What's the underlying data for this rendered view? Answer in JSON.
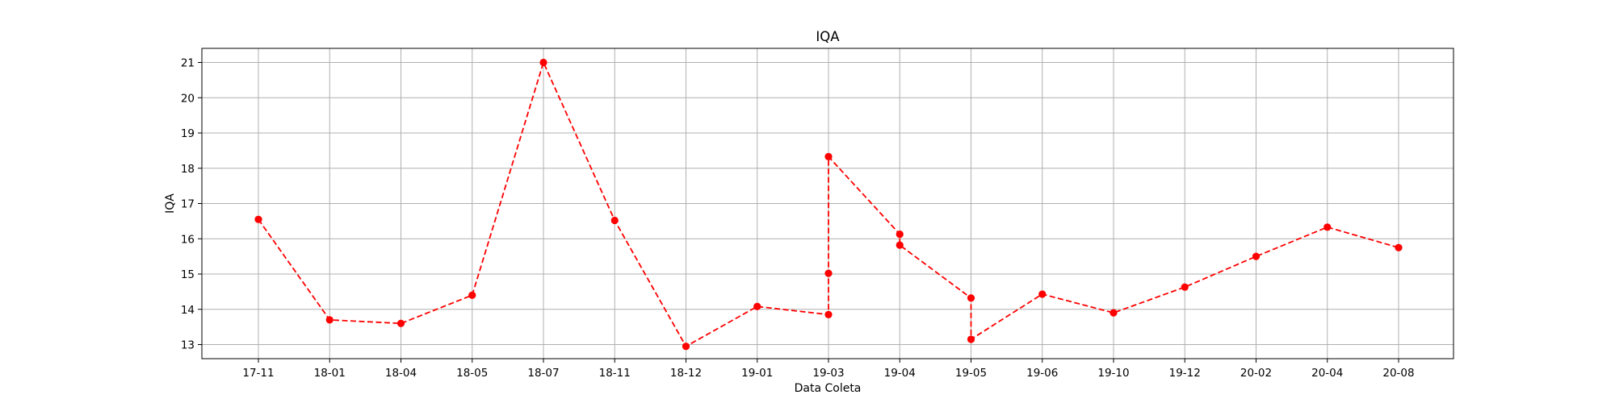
{
  "chart_data": {
    "type": "line",
    "title": "IQA",
    "xlabel": "Data Coleta",
    "ylabel": "IQA",
    "categories": [
      "17-11",
      "18-01",
      "18-04",
      "18-05",
      "18-07",
      "18-11",
      "18-12",
      "19-01",
      "19-03",
      "19-04",
      "19-05",
      "19-06",
      "19-10",
      "19-12",
      "20-02",
      "20-04",
      "20-08"
    ],
    "yticks": [
      13,
      14,
      15,
      16,
      17,
      18,
      19,
      20,
      21
    ],
    "ylim": [
      12.6,
      21.4
    ],
    "grid": true,
    "series": [
      {
        "color": "#ff0000",
        "line_style": "dashed",
        "marker": "circle",
        "points": [
          {
            "x": "17-11",
            "y": 16.55
          },
          {
            "x": "18-01",
            "y": 13.7
          },
          {
            "x": "18-04",
            "y": 13.6
          },
          {
            "x": "18-05",
            "y": 14.4
          },
          {
            "x": "18-07",
            "y": 21.0
          },
          {
            "x": "18-11",
            "y": 16.52
          },
          {
            "x": "18-12",
            "y": 12.95
          },
          {
            "x": "19-01",
            "y": 14.08
          },
          {
            "x": "19-03",
            "y": 13.85
          },
          {
            "x": "19-03",
            "y": 15.02
          },
          {
            "x": "19-03",
            "y": 18.33
          },
          {
            "x": "19-04",
            "y": 16.13
          },
          {
            "x": "19-04",
            "y": 15.82
          },
          {
            "x": "19-05",
            "y": 14.32
          },
          {
            "x": "19-05",
            "y": 13.15
          },
          {
            "x": "19-06",
            "y": 14.43
          },
          {
            "x": "19-10",
            "y": 13.9
          },
          {
            "x": "19-12",
            "y": 14.63
          },
          {
            "x": "20-02",
            "y": 15.5
          },
          {
            "x": "20-04",
            "y": 16.33
          },
          {
            "x": "20-08",
            "y": 15.75
          }
        ]
      }
    ]
  }
}
